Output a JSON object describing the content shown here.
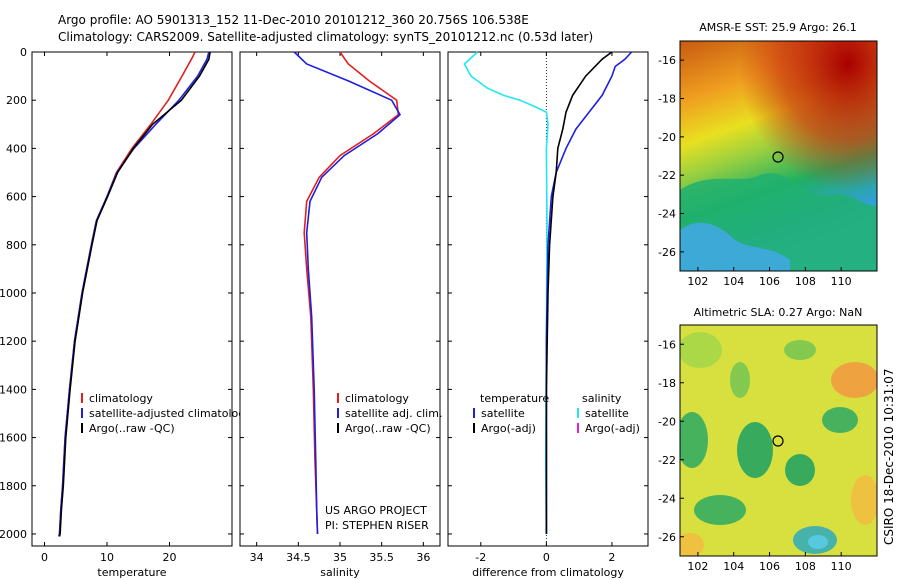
{
  "header": {
    "title_line1": "Argo profile: AO 5901313_152 11-Dec-2010 20101212_360 20.756S 106.538E",
    "title_line2": "Climatology: CARS2009. Satellite-adjusted climatology: synTS_20101212.nc (0.53d later)"
  },
  "side_label": "CSIRO 18-Dec-2010 10:31:07",
  "colors": {
    "climatology": "#e02020",
    "satellite": "#1f1fe0",
    "argo": "#000000",
    "sal_satellite": "#22e6f0",
    "sal_argo": "#e020e0"
  },
  "chart_data": [
    {
      "type": "line",
      "xlabel": "temperature",
      "ylabel": "",
      "xlim": [
        -2,
        30
      ],
      "ylim": [
        2050,
        0
      ],
      "xticks": [
        "0",
        "10",
        "20"
      ],
      "xtick_values": [
        0,
        10,
        20
      ],
      "yticks": [
        "0",
        "200",
        "400",
        "600",
        "800",
        "1000",
        "1200",
        "1400",
        "1600",
        "1800",
        "2000"
      ],
      "ytick_values": [
        0,
        200,
        400,
        600,
        800,
        1000,
        1200,
        1400,
        1600,
        1800,
        2000
      ],
      "legend": [
        {
          "label": "climatology",
          "color": "#e02020"
        },
        {
          "label": "satellite-adjusted climatology",
          "color": "#1f1fe0"
        },
        {
          "label": "Argo(..raw -QC)",
          "color": "#000000"
        }
      ],
      "series": [
        {
          "color": "#e02020",
          "x": [
            24.1,
            23.5,
            22.0,
            19.8,
            17.0,
            14.0,
            11.5,
            10.0,
            8.3,
            7.5,
            6.0,
            4.8,
            4.0,
            3.3,
            2.9,
            2.6,
            2.4,
            2.3
          ],
          "y": [
            0,
            30,
            100,
            200,
            300,
            400,
            500,
            600,
            700,
            800,
            1000,
            1200,
            1400,
            1600,
            1800,
            1900,
            2000,
            2010
          ]
        },
        {
          "color": "#1f1fe0",
          "x": [
            26.3,
            26.0,
            24.5,
            21.5,
            17.8,
            14.3,
            11.6,
            10.0,
            8.3,
            7.5,
            6.0,
            4.8,
            4.0,
            3.3,
            2.9,
            2.6,
            2.4,
            2.3
          ],
          "y": [
            0,
            30,
            100,
            200,
            300,
            400,
            500,
            600,
            700,
            800,
            1000,
            1200,
            1400,
            1600,
            1800,
            1900,
            2000,
            2010
          ]
        },
        {
          "color": "#000000",
          "x": [
            26.5,
            26.3,
            24.8,
            21.9,
            17.3,
            14.2,
            11.7,
            10.1,
            8.4,
            7.6,
            6.1,
            4.9,
            4.1,
            3.4,
            3.0,
            2.7,
            2.5,
            2.4
          ],
          "y": [
            0,
            30,
            100,
            200,
            300,
            400,
            500,
            600,
            700,
            800,
            1000,
            1200,
            1400,
            1600,
            1800,
            1900,
            2000,
            2010
          ]
        }
      ]
    },
    {
      "type": "line",
      "xlabel": "salinity",
      "xlim": [
        33.8,
        36.2
      ],
      "ylim": [
        2050,
        0
      ],
      "xticks": [
        "34",
        "34.5",
        "35",
        "35.5",
        "36"
      ],
      "xtick_values": [
        34,
        34.5,
        35,
        35.5,
        36
      ],
      "legend": [
        {
          "label": "climatology",
          "color": "#e02020"
        },
        {
          "label": "satellite adj. clim.",
          "color": "#1f1fe0"
        },
        {
          "label": "Argo(..raw -QC)",
          "color": "#000000"
        }
      ],
      "annotation_lines": [
        "US ARGO PROJECT",
        "PI: STEPHEN RISER"
      ],
      "series": [
        {
          "color": "#e02020",
          "x": [
            35.0,
            35.1,
            35.35,
            35.68,
            35.7,
            35.4,
            35.0,
            34.75,
            34.6,
            34.57,
            34.6,
            34.65,
            34.68,
            34.7,
            34.72,
            34.73
          ],
          "y": [
            0,
            50,
            120,
            200,
            260,
            340,
            430,
            520,
            620,
            750,
            900,
            1100,
            1400,
            1700,
            1900,
            2000
          ]
        },
        {
          "color": "#1f1fe0",
          "x": [
            34.45,
            34.6,
            35.1,
            35.62,
            35.72,
            35.45,
            35.05,
            34.78,
            34.64,
            34.6,
            34.62,
            34.66,
            34.69,
            34.71,
            34.72,
            34.73
          ],
          "y": [
            0,
            50,
            120,
            200,
            260,
            340,
            430,
            520,
            620,
            750,
            900,
            1100,
            1400,
            1700,
            1900,
            2000
          ]
        }
      ]
    },
    {
      "type": "line",
      "xlabel": "difference from climatology",
      "xlim": [
        -3,
        3.1
      ],
      "ylim": [
        2050,
        0
      ],
      "xticks": [
        "-2",
        "0",
        "2"
      ],
      "xtick_values": [
        -2,
        0,
        2
      ],
      "legend_headers": [
        "temperature",
        "salinity"
      ],
      "legend": [
        {
          "label": "satellite",
          "color": "#1f1fe0"
        },
        {
          "label": "Argo(-adj)",
          "color": "#000000"
        },
        {
          "label": "satellite",
          "color": "#22e6f0"
        },
        {
          "label": "Argo(-adj)",
          "color": "#e020e0"
        }
      ],
      "series": [
        {
          "color": "#22e6f0",
          "x": [
            -2.1,
            -2.5,
            -2.3,
            -1.8,
            -1.3,
            -0.8,
            -0.3,
            0.0,
            0.05,
            0.0,
            0.02,
            0.0,
            -0.02,
            0.0
          ],
          "y": [
            0,
            50,
            100,
            150,
            180,
            200,
            230,
            250,
            300,
            400,
            700,
            1200,
            1700,
            2000
          ]
        },
        {
          "color": "#1f1fe0",
          "x": [
            2.6,
            2.4,
            2.1,
            2.0,
            1.7,
            1.3,
            0.9,
            0.6,
            0.3,
            0.15,
            0.05,
            0.0,
            0.0,
            0.0
          ],
          "y": [
            0,
            30,
            60,
            100,
            180,
            250,
            320,
            400,
            500,
            600,
            800,
            1200,
            1700,
            2000
          ]
        },
        {
          "color": "#000000",
          "x": [
            2.0,
            1.7,
            1.2,
            0.8,
            0.6,
            0.5,
            0.35,
            0.3,
            0.2,
            0.1,
            0.05,
            0.0,
            0.0
          ],
          "y": [
            0,
            30,
            100,
            180,
            250,
            320,
            400,
            500,
            600,
            800,
            1000,
            1400,
            2000
          ]
        }
      ]
    }
  ],
  "maps": [
    {
      "title": "AMSR-E SST: 25.9 Argo: 26.1",
      "xticks": [
        "102",
        "104",
        "106",
        "108",
        "110"
      ],
      "yticks": [
        "-16",
        "-18",
        "-20",
        "-22",
        "-24",
        "-26"
      ],
      "lon_range": [
        101,
        112
      ],
      "lat_range": [
        -27,
        -15
      ],
      "marker_lon": 106.5,
      "marker_lat": -20.8
    },
    {
      "title": "Altimetric SLA: 0.27 Argo: NaN",
      "xticks": [
        "102",
        "104",
        "106",
        "108",
        "110"
      ],
      "yticks": [
        "-16",
        "-18",
        "-20",
        "-22",
        "-24",
        "-26"
      ],
      "lon_range": [
        101,
        112
      ],
      "lat_range": [
        -27,
        -15
      ],
      "marker_lon": 106.5,
      "marker_lat": -20.8
    }
  ]
}
